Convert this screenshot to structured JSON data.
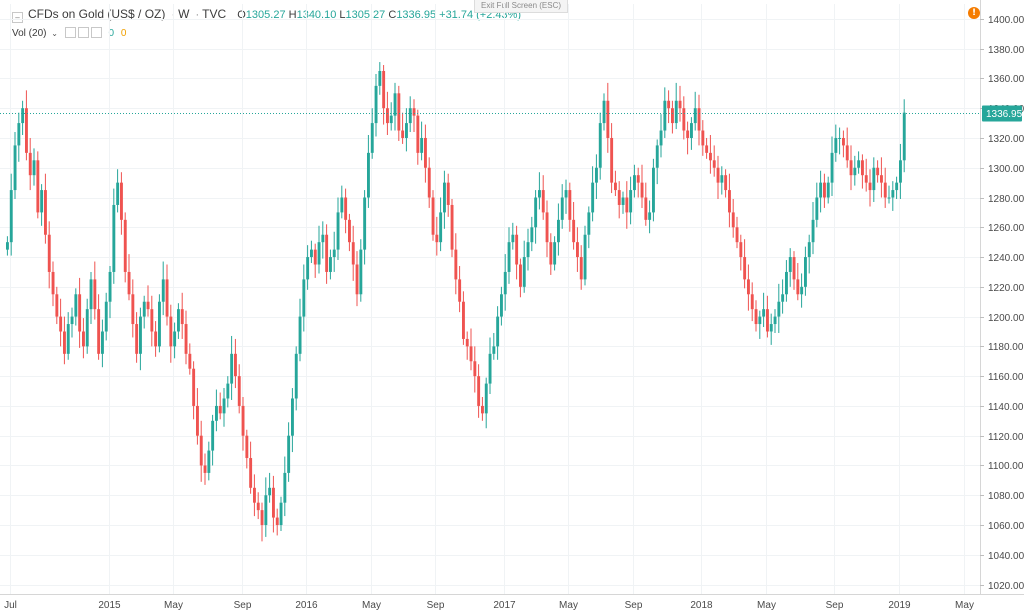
{
  "header": {
    "symbol": "CFDs on Gold (US$ / OZ)",
    "sep": "·",
    "interval": "W",
    "source": "TVC",
    "ohlc": {
      "o_label": "O",
      "o": "1305.27",
      "h_label": "H",
      "h": "1340.10",
      "l_label": "L",
      "l": "1305.27",
      "c_label": "C",
      "c": "1336.95",
      "change": "+31.74 (+2.43%)"
    },
    "exit_fullscreen": "Exit Full Screen (ESC)"
  },
  "volume_legend": {
    "label": "Vol (20)",
    "value_a": "0",
    "value_b": "0"
  },
  "colors": {
    "up": "#26a69a",
    "down": "#ef5350",
    "last_line": "#26a69a"
  },
  "icons": {
    "collapse": "collapse-icon",
    "warning": "warning-icon",
    "settings": "gear-icon"
  },
  "warning_glyph": "!",
  "settings_glyph": "⚙",
  "chart_data": {
    "type": "candlestick",
    "timeframe": "weekly",
    "last_price_label": "1336.95",
    "ylim": [
      1015,
      1410
    ],
    "y_ticks": [
      1020,
      1040,
      1060,
      1080,
      1100,
      1120,
      1140,
      1160,
      1180,
      1200,
      1220,
      1240,
      1260,
      1280,
      1300,
      1320,
      1340,
      1360,
      1380,
      1400
    ],
    "x_ticks": [
      {
        "label": "Jul",
        "week": 1
      },
      {
        "label": "2015",
        "week": 27
      },
      {
        "label": "May",
        "week": 44
      },
      {
        "label": "Sep",
        "week": 62
      },
      {
        "label": "2016",
        "week": 79
      },
      {
        "label": "May",
        "week": 96
      },
      {
        "label": "Sep",
        "week": 113
      },
      {
        "label": "2017",
        "week": 131
      },
      {
        "label": "May",
        "week": 148
      },
      {
        "label": "Sep",
        "week": 165
      },
      {
        "label": "2018",
        "week": 183
      },
      {
        "label": "May",
        "week": 200
      },
      {
        "label": "Sep",
        "week": 218
      },
      {
        "label": "2019",
        "week": 235
      },
      {
        "label": "May",
        "week": 252
      }
    ],
    "closes": [
      1250,
      1285,
      1315,
      1330,
      1340,
      1310,
      1295,
      1305,
      1270,
      1285,
      1255,
      1230,
      1215,
      1200,
      1190,
      1175,
      1195,
      1200,
      1215,
      1190,
      1180,
      1205,
      1225,
      1205,
      1175,
      1190,
      1210,
      1230,
      1275,
      1290,
      1265,
      1230,
      1215,
      1195,
      1175,
      1200,
      1210,
      1205,
      1190,
      1180,
      1210,
      1225,
      1200,
      1180,
      1190,
      1205,
      1195,
      1175,
      1165,
      1140,
      1120,
      1100,
      1095,
      1110,
      1130,
      1140,
      1135,
      1145,
      1155,
      1175,
      1160,
      1140,
      1120,
      1105,
      1085,
      1075,
      1070,
      1060,
      1080,
      1085,
      1065,
      1060,
      1075,
      1095,
      1120,
      1145,
      1175,
      1200,
      1225,
      1240,
      1245,
      1235,
      1250,
      1255,
      1230,
      1240,
      1245,
      1270,
      1280,
      1265,
      1250,
      1235,
      1215,
      1245,
      1280,
      1310,
      1330,
      1355,
      1365,
      1340,
      1330,
      1335,
      1350,
      1325,
      1320,
      1330,
      1340,
      1335,
      1310,
      1320,
      1300,
      1280,
      1255,
      1250,
      1270,
      1290,
      1275,
      1245,
      1225,
      1210,
      1185,
      1180,
      1170,
      1160,
      1140,
      1135,
      1155,
      1175,
      1180,
      1200,
      1215,
      1230,
      1250,
      1255,
      1235,
      1220,
      1240,
      1250,
      1260,
      1280,
      1285,
      1270,
      1250,
      1235,
      1250,
      1265,
      1280,
      1285,
      1265,
      1250,
      1240,
      1225,
      1255,
      1270,
      1290,
      1300,
      1330,
      1345,
      1320,
      1290,
      1285,
      1275,
      1280,
      1270,
      1285,
      1295,
      1290,
      1280,
      1265,
      1270,
      1300,
      1315,
      1325,
      1345,
      1340,
      1330,
      1345,
      1340,
      1325,
      1320,
      1330,
      1340,
      1325,
      1315,
      1310,
      1305,
      1300,
      1290,
      1295,
      1285,
      1270,
      1260,
      1250,
      1240,
      1225,
      1215,
      1205,
      1195,
      1200,
      1205,
      1190,
      1195,
      1200,
      1210,
      1215,
      1230,
      1240,
      1225,
      1215,
      1220,
      1240,
      1250,
      1265,
      1280,
      1290,
      1280,
      1290,
      1310,
      1320,
      1320,
      1315,
      1305,
      1295,
      1300,
      1305,
      1295,
      1290,
      1285,
      1300,
      1295,
      1290,
      1280,
      1280,
      1285,
      1290,
      1305,
      1337
    ]
  }
}
